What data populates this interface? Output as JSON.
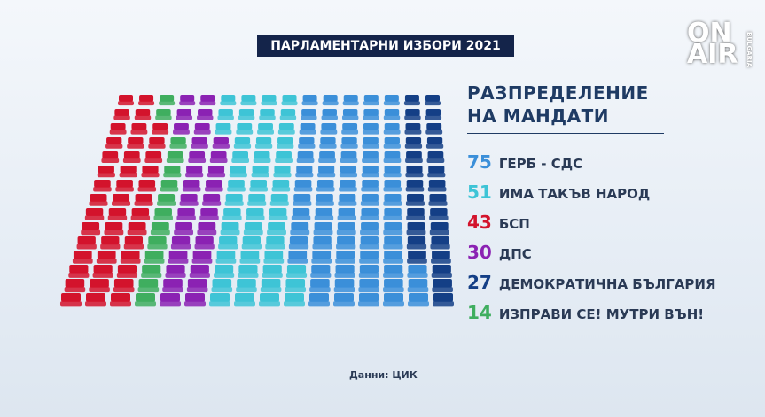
{
  "chart_data": {
    "type": "waffle",
    "title": "ПАРЛАМЕНТАРНИ ИЗБОРИ 2021",
    "subtitle": "РАЗПРЕДЕЛЕНИЕ НА МАНДАТИ",
    "series": [
      {
        "name": "ГЕРБ - СДС",
        "color": "#3b8fd9",
        "values": [
          75
        ]
      },
      {
        "name": "ИМА ТАКЪВ НАРОД",
        "color": "#3ec4d6",
        "values": [
          51
        ]
      },
      {
        "name": "БСП",
        "color": "#d3132c",
        "values": [
          43
        ]
      },
      {
        "name": "ДПС",
        "color": "#8b22b3",
        "values": [
          30
        ]
      },
      {
        "name": "ДЕМОКРАТИЧНА БЪЛГАРИЯ",
        "color": "#143f86",
        "values": [
          27
        ]
      },
      {
        "name": "ИЗПРАВИ СЕ! МУТРИ ВЪН!",
        "color": "#3fae5f",
        "values": [
          14
        ]
      }
    ],
    "source": "Данни: ЦИК"
  },
  "logo": {
    "line1": "ON",
    "line2": "AIR",
    "side": "BULGARIA"
  }
}
